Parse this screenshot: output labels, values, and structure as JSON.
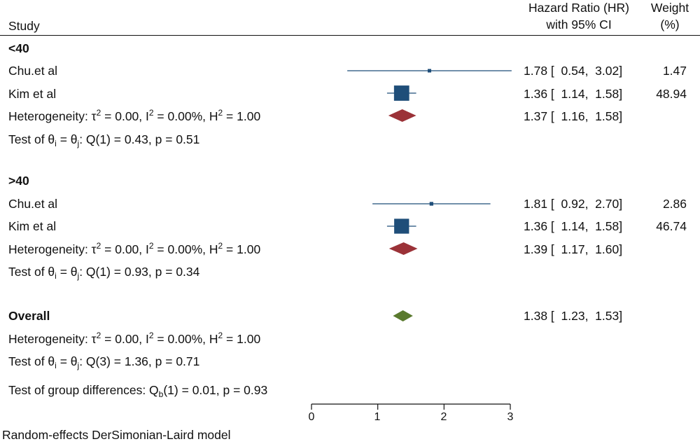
{
  "header": {
    "study": "Study",
    "hr_line1": "Hazard Ratio (HR)",
    "hr_line2": "with 95% CI",
    "weight_line1": "Weight",
    "weight_line2": "(%)"
  },
  "colors": {
    "study_marker": "#1f4e79",
    "subgroup_diamond": "#9b3238",
    "overall_diamond": "#5a7a2e",
    "axis": "#111111"
  },
  "footer": {
    "group_test_prefix": "Test of group differences: Q",
    "group_test_sub": "b",
    "group_test_suffix": "(1) = 0.01, p = 0.93",
    "model": "Random-effects DerSimonian-Laird model"
  },
  "chart_data": {
    "type": "forest",
    "xlim": [
      0,
      3
    ],
    "xticks": [
      "0",
      "1",
      "2",
      "3"
    ],
    "groups": [
      {
        "label": "<40",
        "studies": [
          {
            "name": "Chu.et al",
            "hr": 1.78,
            "lo": 0.54,
            "hi": 3.02,
            "ci_text": "1.78 [  0.54,  3.02]",
            "weight": 1.47,
            "weight_text": "1.47"
          },
          {
            "name": "Kim et al",
            "hr": 1.36,
            "lo": 1.14,
            "hi": 1.58,
            "ci_text": "1.36 [  1.14,  1.58]",
            "weight": 48.94,
            "weight_text": "48.94"
          }
        ],
        "pooled": {
          "hr": 1.37,
          "lo": 1.16,
          "hi": 1.58,
          "ci_text": "1.37 [  1.16,  1.58]"
        },
        "heterogeneity": {
          "prefix": "Heterogeneity: τ",
          "tau_sup": "2",
          "tau_val": " = 0.00, I",
          "i_sup": "2",
          "i_val": " = 0.00%, H",
          "h_sup": "2",
          "h_val": " = 1.00"
        },
        "test": {
          "prefix": "Test of θ",
          "i_sub": "i",
          "mid": " = θ",
          "j_sub": "j",
          "suffix": ": Q(1) = 0.43, p = 0.51"
        }
      },
      {
        "label": ">40",
        "studies": [
          {
            "name": "Chu.et al",
            "hr": 1.81,
            "lo": 0.92,
            "hi": 2.7,
            "ci_text": "1.81 [  0.92,  2.70]",
            "weight": 2.86,
            "weight_text": "2.86"
          },
          {
            "name": "Kim et al",
            "hr": 1.36,
            "lo": 1.14,
            "hi": 1.58,
            "ci_text": "1.36 [  1.14,  1.58]",
            "weight": 46.74,
            "weight_text": "46.74"
          }
        ],
        "pooled": {
          "hr": 1.39,
          "lo": 1.17,
          "hi": 1.6,
          "ci_text": "1.39 [  1.17,  1.60]"
        },
        "heterogeneity": {
          "prefix": "Heterogeneity: τ",
          "tau_sup": "2",
          "tau_val": " = 0.00, I",
          "i_sup": "2",
          "i_val": " = 0.00%, H",
          "h_sup": "2",
          "h_val": " = 1.00"
        },
        "test": {
          "prefix": "Test of θ",
          "i_sub": "i",
          "mid": " = θ",
          "j_sub": "j",
          "suffix": ": Q(1) = 0.93, p = 0.34"
        }
      }
    ],
    "overall": {
      "label": "Overall",
      "hr": 1.38,
      "lo": 1.23,
      "hi": 1.53,
      "ci_text": "1.38 [  1.23,  1.53]",
      "heterogeneity": {
        "prefix": "Heterogeneity: τ",
        "tau_sup": "2",
        "tau_val": " = 0.00, I",
        "i_sup": "2",
        "i_val": " = 0.00%, H",
        "h_sup": "2",
        "h_val": " = 1.00"
      },
      "test": {
        "prefix": "Test of θ",
        "i_sub": "i",
        "mid": " = θ",
        "j_sub": "j",
        "suffix": ": Q(3) = 1.36, p = 0.71"
      }
    }
  }
}
